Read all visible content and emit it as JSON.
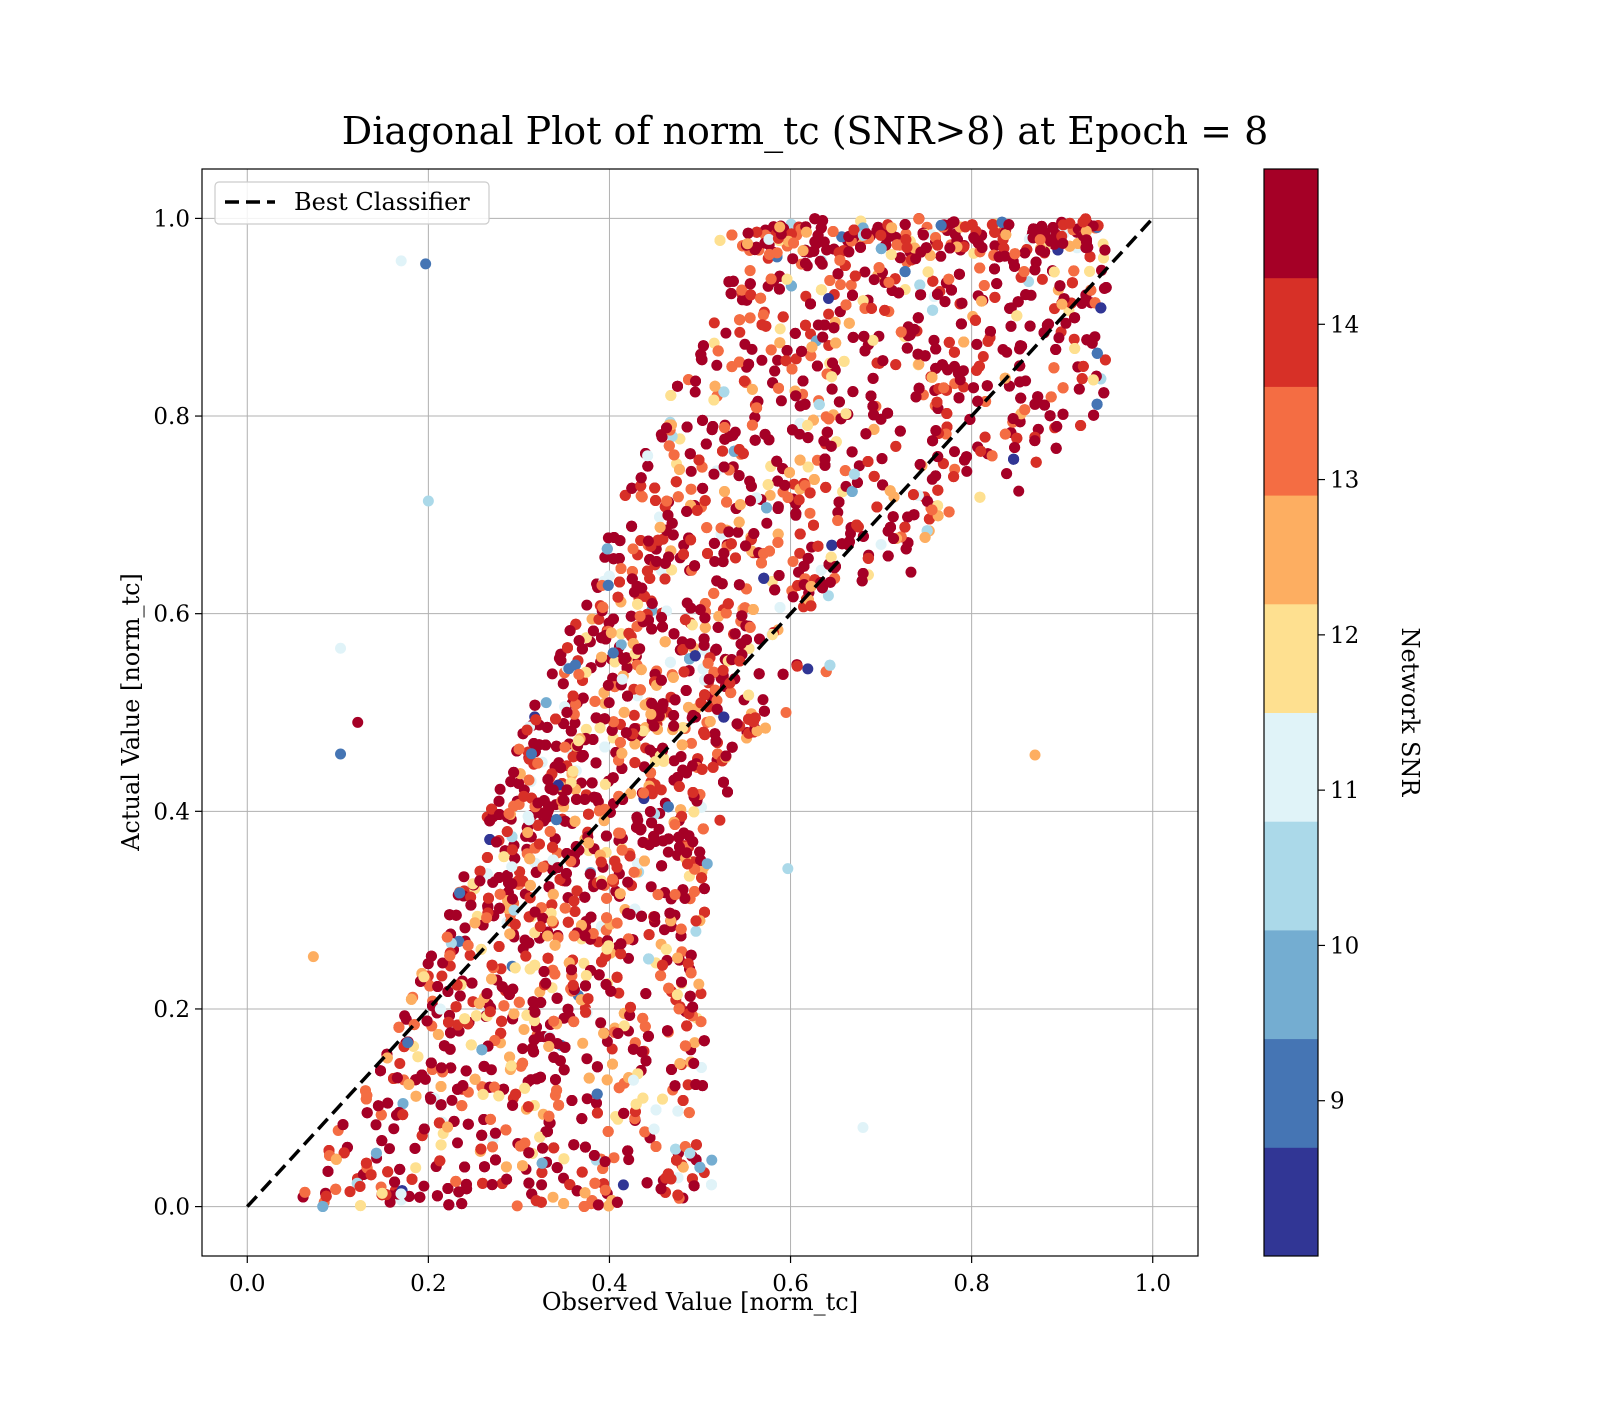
{
  "chart_data": {
    "type": "scatter",
    "title": "Diagonal Plot of norm_tc (SNR>8) at Epoch = 8",
    "xlabel": "Observed Value [norm_tc]",
    "ylabel": "Actual Value [norm_tc]",
    "xlim": [
      -0.05,
      1.05
    ],
    "ylim": [
      -0.05,
      1.05
    ],
    "xticks": [
      "0.0",
      "0.2",
      "0.4",
      "0.6",
      "0.8",
      "1.0"
    ],
    "yticks": [
      "0.0",
      "0.2",
      "0.4",
      "0.6",
      "0.8",
      "1.0"
    ],
    "grid": true,
    "legend": {
      "placement": "top-left",
      "entries": [
        {
          "label": "Best Classifier",
          "style": "dashed",
          "color": "#000000"
        }
      ]
    },
    "reference_line": {
      "name": "Best Classifier",
      "x": [
        0.0,
        1.0
      ],
      "y": [
        0.0,
        1.0
      ],
      "color": "#000000",
      "style": "dashed"
    },
    "colorbar": {
      "label": "Network SNR",
      "range": [
        8.0,
        15.0
      ],
      "ticks": [
        "9",
        "10",
        "11",
        "12",
        "13",
        "14"
      ],
      "tick_values": [
        9,
        10,
        11,
        12,
        13,
        14
      ],
      "colors": [
        "#313695",
        "#4575b4",
        "#74add1",
        "#abd9e9",
        "#e0f3f8",
        "#fee090",
        "#fdae61",
        "#f46d43",
        "#d73027",
        "#a50026"
      ]
    },
    "point_density_bands": [
      {
        "y_range": [
          0.0,
          0.2
        ],
        "x_range": [
          0.05,
          0.5
        ]
      },
      {
        "y_range": [
          0.2,
          0.4
        ],
        "x_range": [
          0.15,
          0.5
        ]
      },
      {
        "y_range": [
          0.4,
          0.6
        ],
        "x_range": [
          0.22,
          0.63
        ]
      },
      {
        "y_range": [
          0.6,
          0.8
        ],
        "x_range": [
          0.27,
          0.85
        ]
      },
      {
        "y_range": [
          0.8,
          1.0
        ],
        "x_range": [
          0.33,
          0.95
        ]
      }
    ],
    "outlier_points": [
      {
        "x": 0.17,
        "y": 0.957,
        "snr": 11.2
      },
      {
        "x": 0.197,
        "y": 0.954,
        "snr": 9.2
      },
      {
        "x": 0.2,
        "y": 0.714,
        "snr": 10.2
      },
      {
        "x": 0.103,
        "y": 0.565,
        "snr": 11.3
      },
      {
        "x": 0.122,
        "y": 0.49,
        "snr": 14.8
      },
      {
        "x": 0.103,
        "y": 0.458,
        "snr": 9.3
      },
      {
        "x": 0.073,
        "y": 0.253,
        "snr": 12.7
      },
      {
        "x": 0.87,
        "y": 0.457,
        "snr": 12.7
      },
      {
        "x": 0.597,
        "y": 0.342,
        "snr": 10.7
      },
      {
        "x": 0.68,
        "y": 0.08,
        "snr": 11.2
      },
      {
        "x": 0.852,
        "y": 0.724,
        "snr": 14.8
      },
      {
        "x": 0.595,
        "y": 0.5,
        "snr": 13.5
      },
      {
        "x": 0.733,
        "y": 0.642,
        "snr": 14.8
      },
      {
        "x": 0.7,
        "y": 0.67,
        "snr": 11.2
      },
      {
        "x": 0.522,
        "y": 0.391,
        "snr": 14.2
      },
      {
        "x": 0.508,
        "y": 0.347,
        "snr": 9.5
      },
      {
        "x": 0.513,
        "y": 0.047,
        "snr": 10.1
      }
    ]
  }
}
